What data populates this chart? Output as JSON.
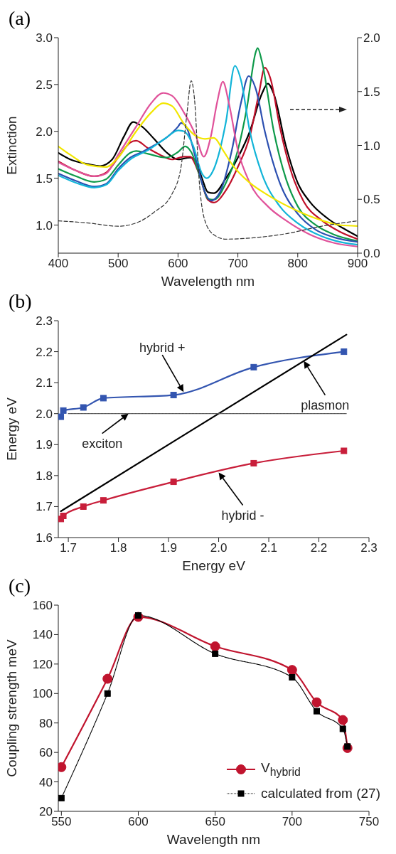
{
  "chart_data": [
    {
      "type": "line",
      "title": "(a)",
      "xlabel": "Wavelength nm",
      "ylabel": "Extinction",
      "xlim": [
        400,
        900
      ],
      "xticks": [
        400,
        500,
        600,
        700,
        800,
        900
      ],
      "ylim": [
        0.7,
        3.0
      ],
      "yticks": [
        {
          "value": 1,
          "label": "1.0"
        },
        1.5,
        {
          "value": 2,
          "label": "2.0"
        },
        2.5,
        {
          "value": 3,
          "label": "3.0"
        }
      ],
      "y2lim": [
        0,
        2
      ],
      "y2ticks": [
        {
          "value": 0,
          "label": "0.0"
        },
        0.5,
        {
          "value": 1,
          "label": "1.0"
        },
        1.5,
        {
          "value": 2,
          "label": "2.0"
        }
      ],
      "marker": "none",
      "line_style": "solid",
      "series": [
        {
          "color": "#000000",
          "x": [
            400,
            420,
            450,
            470,
            490,
            510,
            525,
            540,
            560,
            580,
            600,
            620,
            630,
            640,
            650,
            660,
            680,
            700,
            720,
            740,
            750,
            760,
            780,
            800,
            820,
            850,
            880,
            900
          ],
          "values": [
            1.77,
            1.7,
            1.65,
            1.63,
            1.7,
            1.95,
            2.1,
            2.05,
            1.92,
            1.78,
            1.7,
            1.72,
            1.68,
            1.5,
            1.35,
            1.34,
            1.5,
            1.72,
            2.0,
            2.4,
            2.51,
            2.4,
            1.85,
            1.45,
            1.25,
            1.07,
            0.95,
            0.88
          ]
        },
        {
          "color": "#c0102a",
          "x": [
            400,
            430,
            460,
            480,
            500,
            520,
            530,
            550,
            570,
            590,
            610,
            620,
            635,
            650,
            660,
            680,
            700,
            720,
            735,
            745,
            755,
            770,
            790,
            810,
            840,
            870,
            900
          ],
          "values": [
            1.68,
            1.58,
            1.52,
            1.56,
            1.72,
            1.88,
            1.9,
            1.82,
            1.75,
            1.7,
            1.73,
            1.73,
            1.55,
            1.27,
            1.24,
            1.37,
            1.62,
            1.95,
            2.4,
            2.68,
            2.55,
            2.05,
            1.55,
            1.25,
            1.05,
            0.93,
            0.85
          ]
        },
        {
          "color": "#0e9a4a",
          "x": [
            400,
            430,
            460,
            480,
            500,
            520,
            530,
            550,
            580,
            600,
            612,
            622,
            640,
            650,
            660,
            680,
            700,
            715,
            730,
            733,
            740,
            760,
            780,
            800,
            830,
            860,
            900
          ],
          "values": [
            1.6,
            1.52,
            1.46,
            1.49,
            1.64,
            1.77,
            1.79,
            1.76,
            1.72,
            1.78,
            1.84,
            1.78,
            1.45,
            1.28,
            1.27,
            1.45,
            1.8,
            2.25,
            2.85,
            2.89,
            2.75,
            2.0,
            1.5,
            1.2,
            1.0,
            0.9,
            0.83
          ]
        },
        {
          "color": "#2b4fb0",
          "x": [
            400,
            430,
            460,
            480,
            500,
            520,
            540,
            560,
            580,
            600,
            605,
            615,
            630,
            645,
            655,
            670,
            690,
            705,
            718,
            730,
            745,
            770,
            800,
            830,
            860,
            900
          ],
          "values": [
            1.55,
            1.47,
            1.41,
            1.44,
            1.6,
            1.72,
            1.78,
            1.85,
            1.93,
            2.05,
            2.09,
            2.03,
            1.7,
            1.35,
            1.26,
            1.35,
            1.8,
            2.3,
            2.59,
            2.45,
            2.0,
            1.45,
            1.12,
            0.95,
            0.87,
            0.82
          ]
        },
        {
          "color": "#12b4d8",
          "x": [
            400,
            430,
            460,
            480,
            500,
            520,
            550,
            580,
            600,
            610,
            625,
            640,
            648,
            660,
            680,
            695,
            705,
            720,
            740,
            770,
            800,
            840,
            870,
            900
          ],
          "values": [
            1.53,
            1.45,
            1.4,
            1.43,
            1.58,
            1.7,
            1.8,
            1.93,
            2.01,
            2.0,
            1.85,
            1.55,
            1.5,
            1.6,
            2.1,
            2.7,
            2.55,
            2.0,
            1.55,
            1.2,
            1.02,
            0.88,
            0.82,
            0.79
          ]
        },
        {
          "color": "#e0529a",
          "x": [
            400,
            430,
            460,
            480,
            500,
            530,
            555,
            575,
            590,
            610,
            630,
            643,
            655,
            665,
            675,
            685,
            700,
            720,
            750,
            780,
            820,
            860,
            900
          ],
          "values": [
            1.67,
            1.58,
            1.52,
            1.55,
            1.75,
            2.05,
            2.3,
            2.41,
            2.38,
            2.2,
            1.95,
            1.73,
            1.95,
            2.3,
            2.53,
            2.3,
            1.8,
            1.45,
            1.2,
            1.05,
            0.9,
            0.81,
            0.77
          ]
        },
        {
          "color": "#f2e600",
          "x": [
            400,
            420,
            450,
            480,
            500,
            530,
            555,
            575,
            590,
            610,
            630,
            645,
            660,
            675,
            690,
            720,
            750,
            800,
            840,
            870,
            900
          ],
          "values": [
            1.84,
            1.75,
            1.64,
            1.62,
            1.72,
            2.0,
            2.2,
            2.3,
            2.27,
            2.08,
            1.95,
            1.92,
            1.93,
            1.8,
            1.65,
            1.45,
            1.32,
            1.15,
            1.05,
            1.0,
            0.99
          ]
        },
        {
          "color": "#333333",
          "axis": "y2",
          "line_style": "dashed",
          "x": [
            400,
            450,
            500,
            530,
            560,
            590,
            605,
            615,
            622,
            628,
            635,
            645,
            660,
            680,
            720,
            780,
            840,
            900
          ],
          "values": [
            0.3,
            0.28,
            0.25,
            0.28,
            0.38,
            0.55,
            0.8,
            1.3,
            1.6,
            1.4,
            0.7,
            0.3,
            0.17,
            0.13,
            0.14,
            0.18,
            0.25,
            0.3
          ]
        }
      ]
    },
    {
      "type": "line",
      "title": "(b)",
      "xlabel": "Energy eV",
      "ylabel": "Energy eV",
      "xlim": [
        1.68,
        2.3
      ],
      "xticks": [
        1.7,
        1.8,
        1.9,
        {
          "value": 2,
          "label": "2.0"
        },
        2.1,
        2.2,
        2.3
      ],
      "ylim": [
        1.6,
        2.3
      ],
      "yticks": [
        1.6,
        1.7,
        1.8,
        1.9,
        {
          "value": 2,
          "label": "2.0"
        },
        2.1,
        2.2,
        2.3
      ],
      "line_style": "solid",
      "series": [
        {
          "color": "#3355b0",
          "marker": "square",
          "x": [
            1.685,
            1.69,
            1.73,
            1.77,
            1.91,
            2.07,
            2.25
          ],
          "values": [
            1.99,
            2.01,
            2.02,
            2.05,
            2.06,
            2.15,
            2.2
          ]
        },
        {
          "color": "#c81e3a",
          "marker": "square",
          "x": [
            1.685,
            1.69,
            1.73,
            1.77,
            1.91,
            2.07,
            2.25
          ],
          "values": [
            1.66,
            1.67,
            1.7,
            1.72,
            1.78,
            1.84,
            1.88
          ]
        },
        {
          "color": "#000000",
          "marker": "none",
          "x": [
            1.685,
            2.255
          ],
          "values": [
            1.685,
            2.255
          ]
        },
        {
          "color": "#555555",
          "marker": "none",
          "line_style": "dotted",
          "x": [
            1.7,
            2.255
          ],
          "values": [
            2.0,
            2.0
          ]
        }
      ],
      "annotations": [
        {
          "text": "hybrid +",
          "x": 1.93,
          "y": 2.07
        },
        {
          "text": "exciton",
          "x": 1.82,
          "y": 2.0
        },
        {
          "text": "plasmon",
          "x": 2.17,
          "y": 2.17
        },
        {
          "text": "hybrid -",
          "x": 2.0,
          "y": 1.81
        }
      ]
    },
    {
      "type": "line",
      "title": "(c)",
      "xlabel": "Wavelength nm",
      "ylabel": "Coupling strength meV",
      "xlim": [
        548,
        750
      ],
      "xticks": [
        550,
        600,
        650,
        700,
        750
      ],
      "ylim": [
        20,
        160
      ],
      "yticks": [
        20,
        40,
        60,
        80,
        100,
        120,
        140,
        160
      ],
      "legend": "bottom right",
      "series": [
        {
          "name": "V$_{hybrid}$",
          "color": "#c0142e",
          "marker": "circle",
          "line_style": "solid",
          "x": [
            550,
            580,
            600,
            650,
            700,
            716,
            733,
            736
          ],
          "values": [
            50,
            110,
            152,
            132,
            116,
            94,
            82,
            63
          ]
        },
        {
          "name": "calculated from (27)",
          "color": "#000000",
          "marker": "square",
          "line_style": "dotted",
          "x": [
            550,
            580,
            600,
            650,
            700,
            716,
            733,
            736
          ],
          "values": [
            29,
            100,
            153,
            127,
            111,
            88,
            76,
            64
          ]
        }
      ]
    }
  ]
}
